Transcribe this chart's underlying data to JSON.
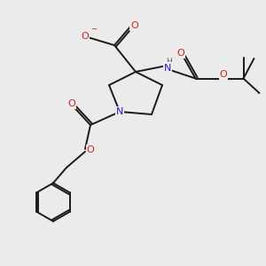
{
  "background_color": "#ebebeb",
  "bond_color": "#1a1a1a",
  "N_color": "#2020cc",
  "O_color": "#cc2020",
  "H_color": "#606060",
  "bond_width": 1.4,
  "figsize": [
    3.0,
    3.0
  ],
  "dpi": 100,
  "xlim": [
    0,
    10
  ],
  "ylim": [
    0,
    10
  ]
}
